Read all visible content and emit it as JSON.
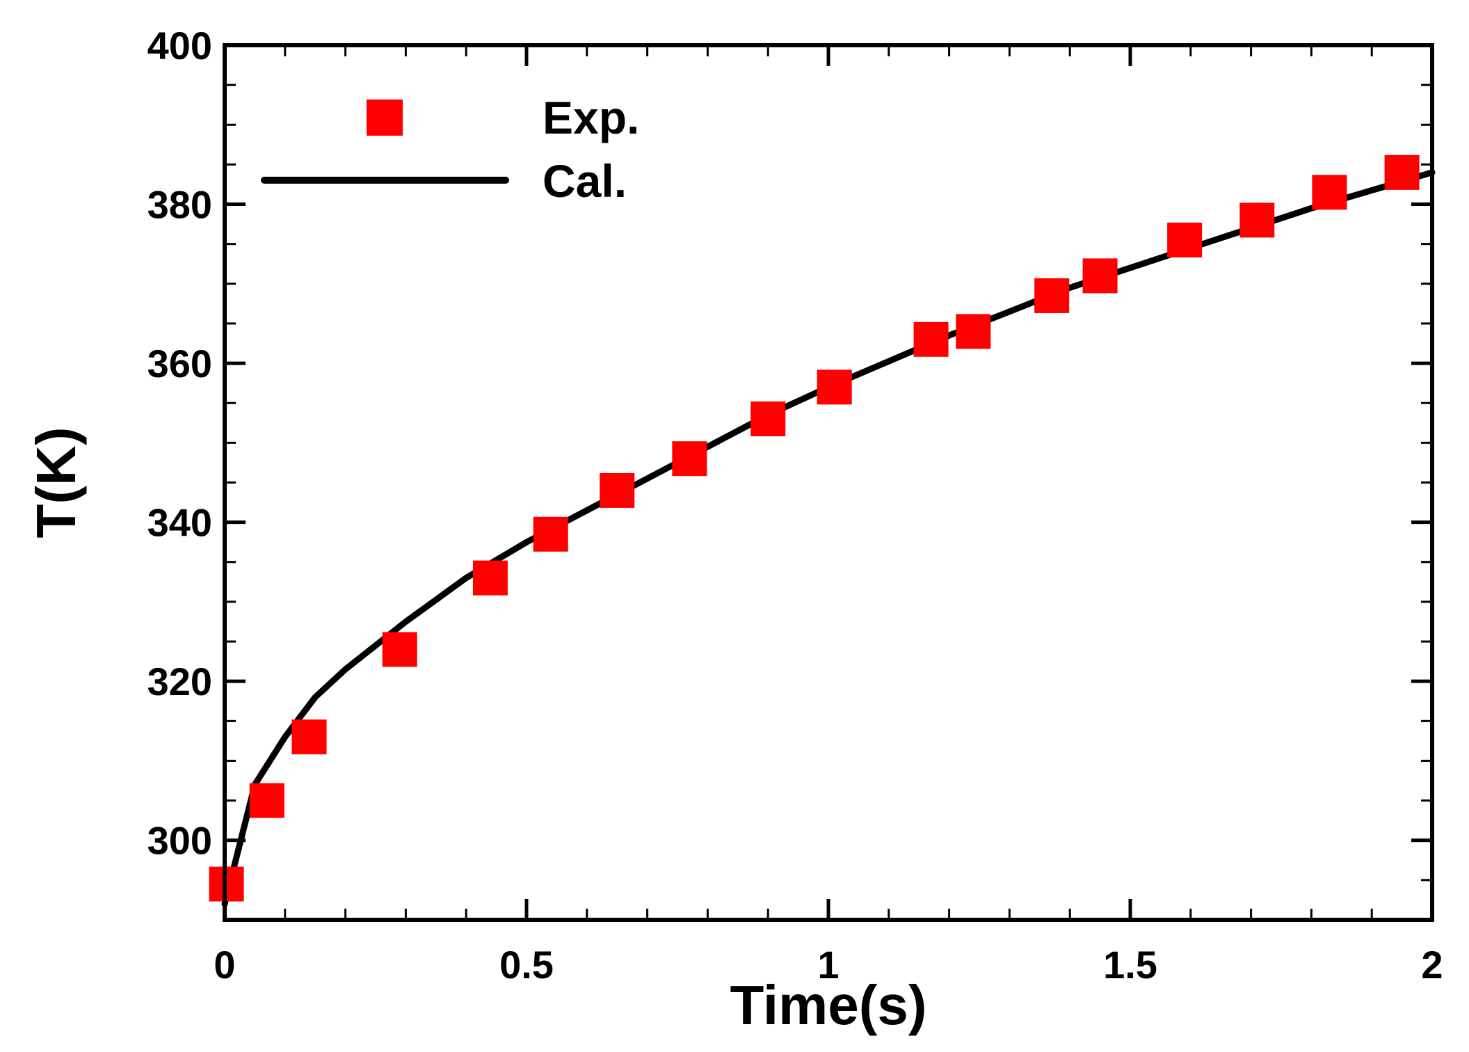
{
  "chart_data": {
    "type": "line",
    "title": "",
    "xlabel": "Time(s)",
    "ylabel": "T(K)",
    "xlim": [
      0,
      2
    ],
    "ylim": [
      290,
      400
    ],
    "xticks": [
      0,
      0.5,
      1,
      1.5,
      2
    ],
    "xtick_labels": [
      "0",
      "0.5",
      "1",
      "1.5",
      "2"
    ],
    "yticks": [
      300,
      320,
      340,
      360,
      380,
      400
    ],
    "ytick_labels": [
      "300",
      "320",
      "340",
      "360",
      "380",
      "400"
    ],
    "x_minor_step": 0.1,
    "y_minor_step": 5,
    "legend_position": "top-left",
    "series": [
      {
        "name": "Exp.",
        "kind": "scatter",
        "marker": "square",
        "color": "#ff0000",
        "x": [
          0.003,
          0.07,
          0.14,
          0.29,
          0.44,
          0.54,
          0.65,
          0.77,
          0.9,
          1.01,
          1.17,
          1.24,
          1.37,
          1.45,
          1.59,
          1.71,
          1.83,
          1.95
        ],
        "y": [
          294.5,
          305,
          313,
          324,
          333,
          338.5,
          344,
          348,
          353,
          357,
          363,
          364,
          368.5,
          371,
          375.5,
          378,
          381.5,
          384
        ]
      },
      {
        "name": "Cal.",
        "kind": "line",
        "color": "#000000",
        "x": [
          0,
          0.05,
          0.1,
          0.15,
          0.2,
          0.3,
          0.4,
          0.5,
          0.6,
          0.7,
          0.8,
          0.9,
          1.0,
          1.2,
          1.4,
          1.6,
          1.8,
          2.0
        ],
        "y": [
          292,
          307,
          313,
          318,
          321.5,
          327.5,
          333,
          337.5,
          341.5,
          345.5,
          349.5,
          353.5,
          357,
          363.5,
          369.5,
          374.5,
          379.5,
          384
        ]
      }
    ]
  }
}
